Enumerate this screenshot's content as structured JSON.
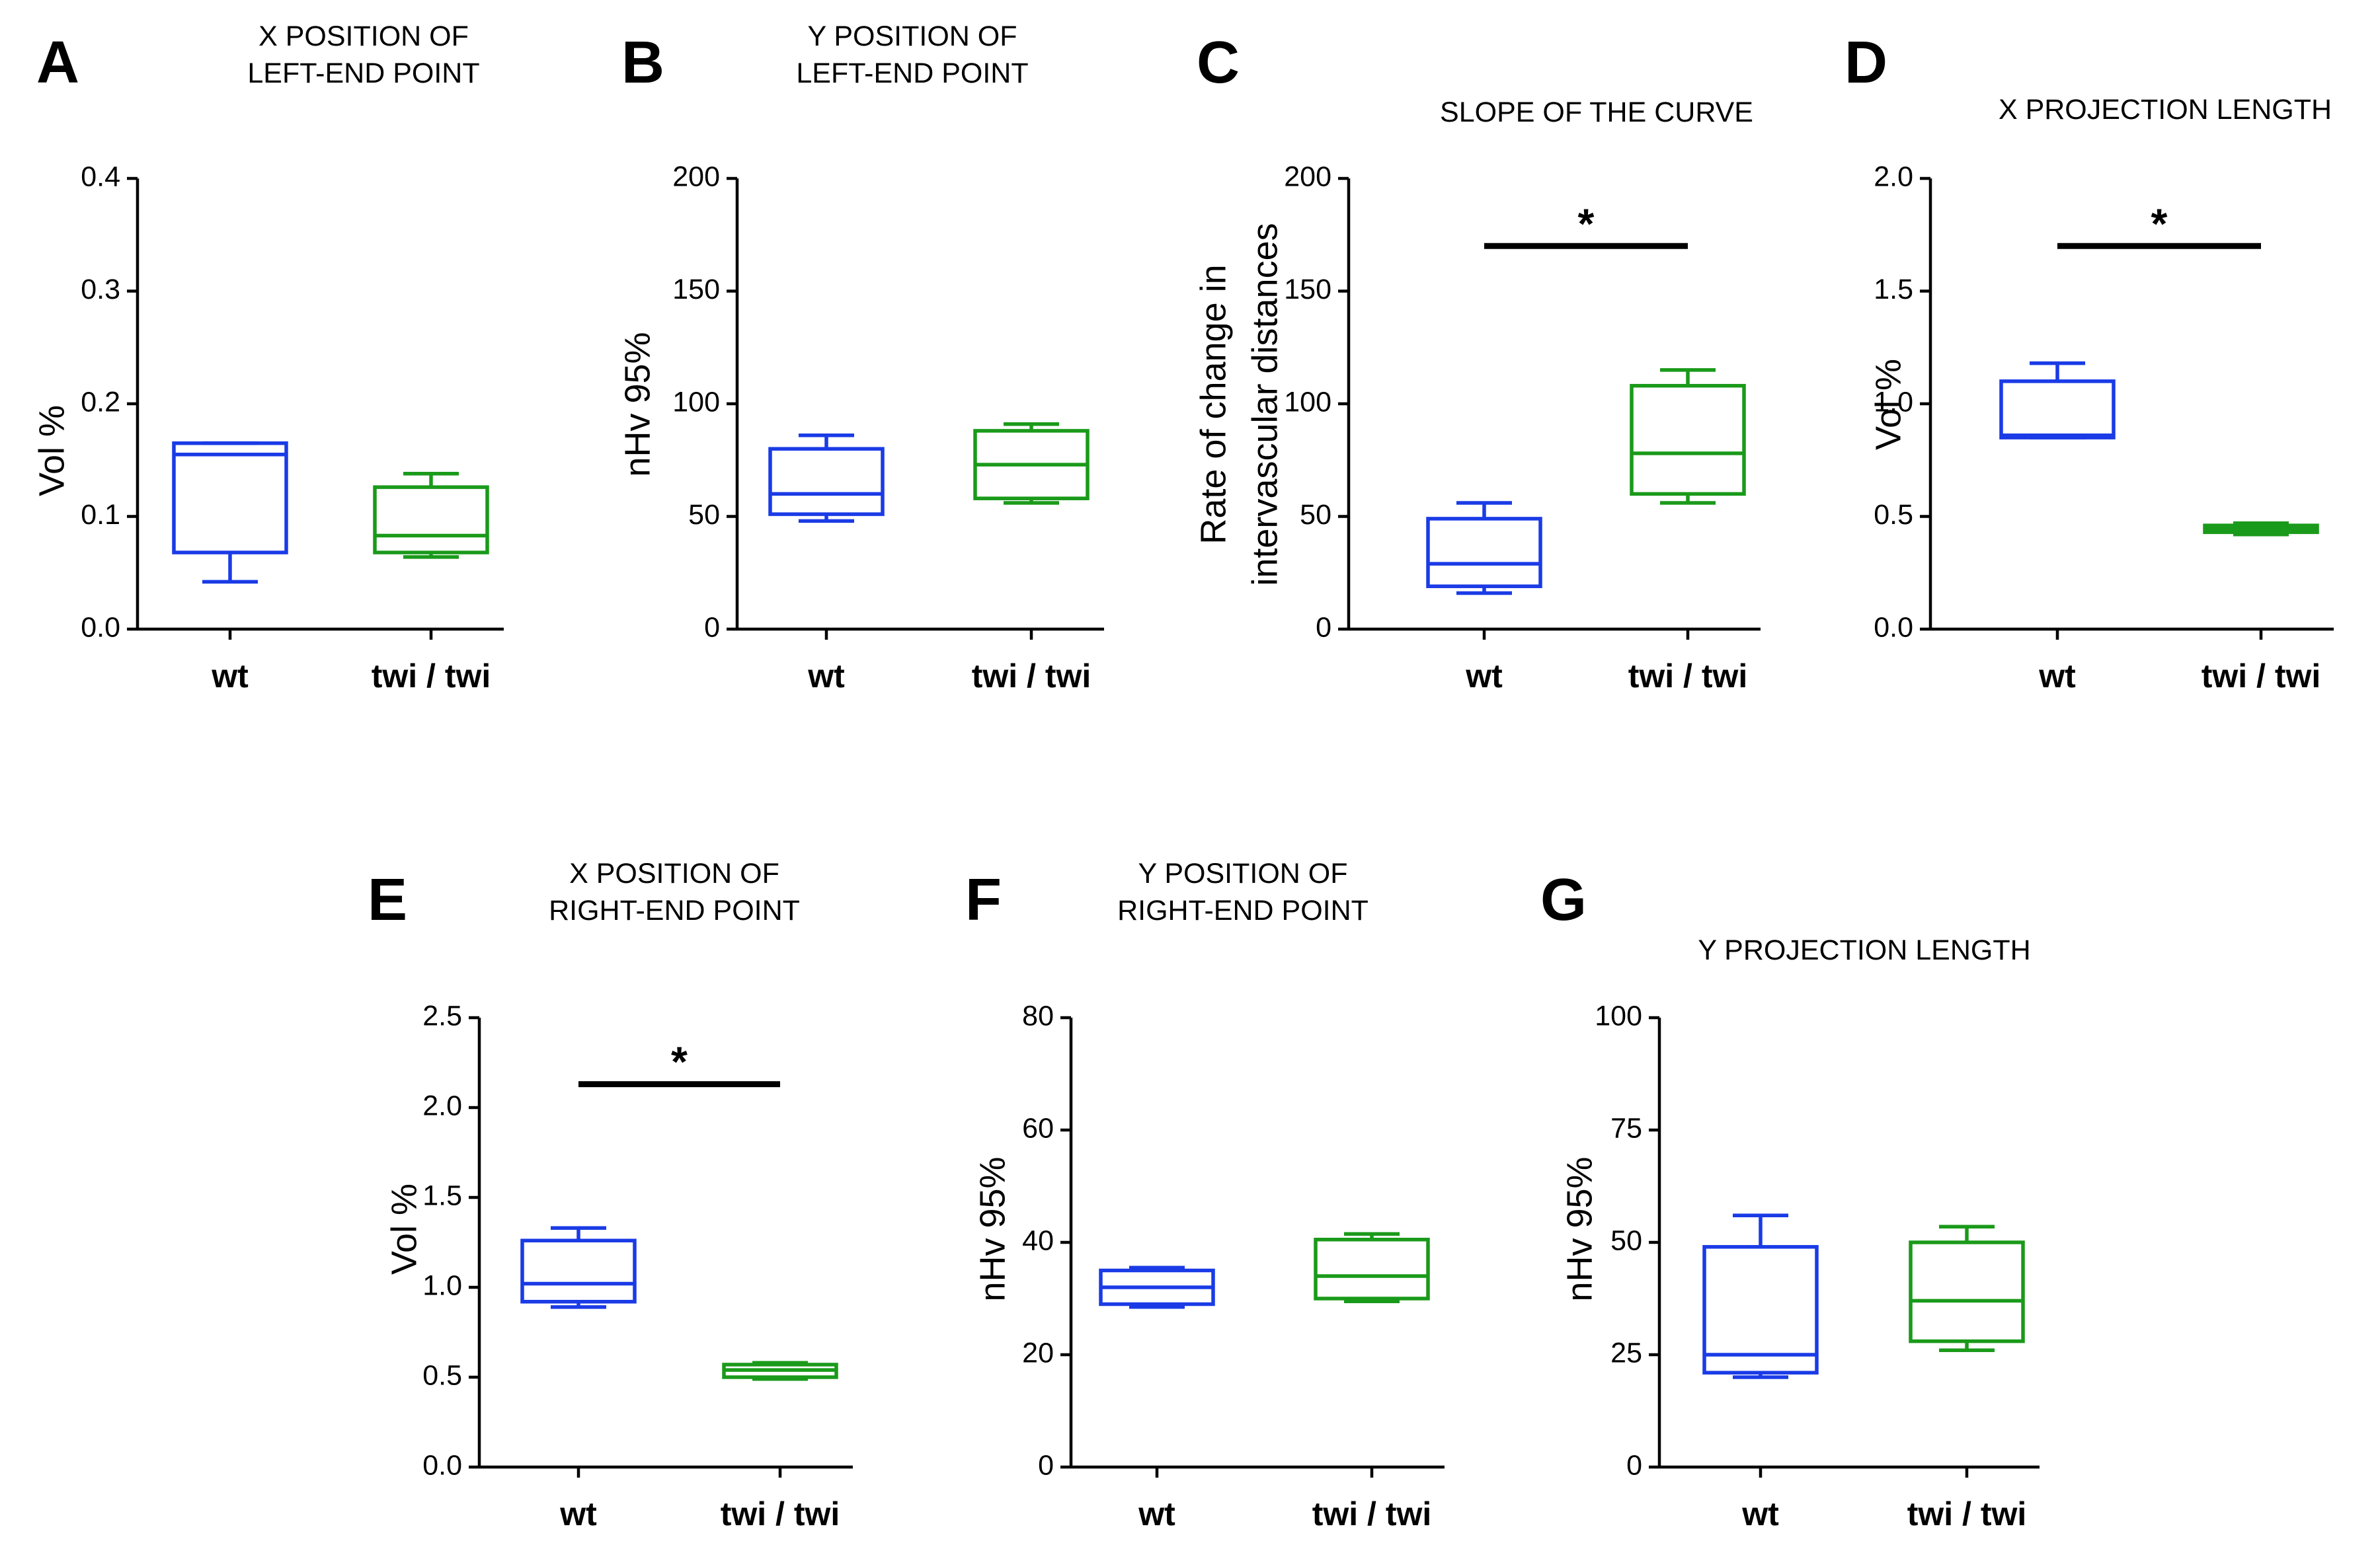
{
  "chart_data": [
    {
      "panel": "A",
      "type": "box",
      "title_lines": [
        "X POSITION OF",
        "LEFT-END POINT"
      ],
      "ylabel_lines": [
        "Vol %"
      ],
      "ylim": [
        0,
        0.4
      ],
      "yticks": [
        0.0,
        0.1,
        0.2,
        0.3,
        0.4
      ],
      "ytick_labels": [
        "0.0",
        "0.1",
        "0.2",
        "0.3",
        "0.4"
      ],
      "categories": [
        "wt",
        "twi / twi"
      ],
      "boxes": [
        {
          "group": "wt",
          "color": "#1a3be6",
          "min": 0.042,
          "q1": 0.068,
          "median": 0.155,
          "q3": 0.165,
          "max": 0.165
        },
        {
          "group": "twi / twi",
          "color": "#1a9a1a",
          "min": 0.064,
          "q1": 0.068,
          "median": 0.083,
          "q3": 0.126,
          "max": 0.138
        }
      ],
      "significance": null
    },
    {
      "panel": "B",
      "type": "box",
      "title_lines": [
        "Y POSITION OF",
        "LEFT-END POINT"
      ],
      "ylabel_lines": [
        "nHv 95%"
      ],
      "ylim": [
        0,
        200
      ],
      "yticks": [
        0,
        50,
        100,
        150,
        200
      ],
      "ytick_labels": [
        "0",
        "50",
        "100",
        "150",
        "200"
      ],
      "categories": [
        "wt",
        "twi / twi"
      ],
      "boxes": [
        {
          "group": "wt",
          "color": "#1a3be6",
          "min": 48,
          "q1": 51,
          "median": 60,
          "q3": 80,
          "max": 86
        },
        {
          "group": "twi / twi",
          "color": "#1a9a1a",
          "min": 56,
          "q1": 58,
          "median": 73,
          "q3": 88,
          "max": 91
        }
      ],
      "significance": null
    },
    {
      "panel": "C",
      "type": "box",
      "title_lines": [
        "SLOPE OF THE CURVE"
      ],
      "ylabel_lines": [
        "Rate of change in",
        "intervascular distances"
      ],
      "ylim": [
        0,
        200
      ],
      "yticks": [
        0,
        50,
        100,
        150,
        200
      ],
      "ytick_labels": [
        "0",
        "50",
        "100",
        "150",
        "200"
      ],
      "categories": [
        "wt",
        "twi / twi"
      ],
      "boxes": [
        {
          "group": "wt",
          "color": "#1a3be6",
          "min": 16,
          "q1": 19,
          "median": 29,
          "q3": 49,
          "max": 56
        },
        {
          "group": "twi / twi",
          "color": "#1a9a1a",
          "min": 56,
          "q1": 60,
          "median": 78,
          "q3": 108,
          "max": 115
        }
      ],
      "significance": {
        "label": "*",
        "y": 170
      }
    },
    {
      "panel": "D",
      "type": "box",
      "title_lines": [
        "X PROJECTION LENGTH"
      ],
      "ylabel_lines": [
        "Vol %"
      ],
      "ylim": [
        0,
        2.0
      ],
      "yticks": [
        0.0,
        0.5,
        1.0,
        1.5,
        2.0
      ],
      "ytick_labels": [
        "0.0",
        "0.5",
        "1.0",
        "1.5",
        "2.0"
      ],
      "categories": [
        "wt",
        "twi / twi"
      ],
      "boxes": [
        {
          "group": "wt",
          "color": "#1a3be6",
          "min": 0.85,
          "q1": 0.85,
          "median": 0.86,
          "q3": 1.1,
          "max": 1.18
        },
        {
          "group": "twi / twi",
          "color": "#1a9a1a",
          "min": 0.42,
          "q1": 0.43,
          "median": 0.445,
          "q3": 0.46,
          "max": 0.47
        }
      ],
      "significance": {
        "label": "*",
        "y": 1.7
      }
    },
    {
      "panel": "E",
      "type": "box",
      "title_lines": [
        "X POSITION OF",
        "RIGHT-END POINT"
      ],
      "ylabel_lines": [
        "Vol %"
      ],
      "ylim": [
        0,
        2.5
      ],
      "yticks": [
        0.0,
        0.5,
        1.0,
        1.5,
        2.0,
        2.5
      ],
      "ytick_labels": [
        "0.0",
        "0.5",
        "1.0",
        "1.5",
        "2.0",
        "2.5"
      ],
      "categories": [
        "wt",
        "twi / twi"
      ],
      "boxes": [
        {
          "group": "wt",
          "color": "#1a3be6",
          "min": 0.89,
          "q1": 0.92,
          "median": 1.02,
          "q3": 1.26,
          "max": 1.33
        },
        {
          "group": "twi / twi",
          "color": "#1a9a1a",
          "min": 0.49,
          "q1": 0.5,
          "median": 0.54,
          "q3": 0.57,
          "max": 0.58
        }
      ],
      "significance": {
        "label": "*",
        "y": 2.13
      }
    },
    {
      "panel": "F",
      "type": "box",
      "title_lines": [
        "Y POSITION OF",
        "RIGHT-END POINT"
      ],
      "ylabel_lines": [
        "nHv 95%"
      ],
      "ylim": [
        0,
        80
      ],
      "yticks": [
        0,
        20,
        40,
        60,
        80
      ],
      "ytick_labels": [
        "0",
        "20",
        "40",
        "60",
        "80"
      ],
      "categories": [
        "wt",
        "twi / twi"
      ],
      "boxes": [
        {
          "group": "wt",
          "color": "#1a3be6",
          "min": 28.5,
          "q1": 29,
          "median": 32,
          "q3": 35,
          "max": 35.5
        },
        {
          "group": "twi / twi",
          "color": "#1a9a1a",
          "min": 29.5,
          "q1": 30,
          "median": 34,
          "q3": 40.5,
          "max": 41.5
        }
      ],
      "significance": null
    },
    {
      "panel": "G",
      "type": "box",
      "title_lines": [
        "Y PROJECTION LENGTH"
      ],
      "ylabel_lines": [
        "nHv 95%"
      ],
      "ylim": [
        0,
        100
      ],
      "yticks": [
        0,
        25,
        50,
        75,
        100
      ],
      "ytick_labels": [
        "0",
        "25",
        "50",
        "75",
        "100"
      ],
      "categories": [
        "wt",
        "twi / twi"
      ],
      "boxes": [
        {
          "group": "wt",
          "color": "#1a3be6",
          "min": 20,
          "q1": 21,
          "median": 25,
          "q3": 49,
          "max": 56
        },
        {
          "group": "twi / twi",
          "color": "#1a9a1a",
          "min": 26,
          "q1": 28,
          "median": 37,
          "q3": 50,
          "max": 53.5
        }
      ],
      "significance": null
    }
  ]
}
